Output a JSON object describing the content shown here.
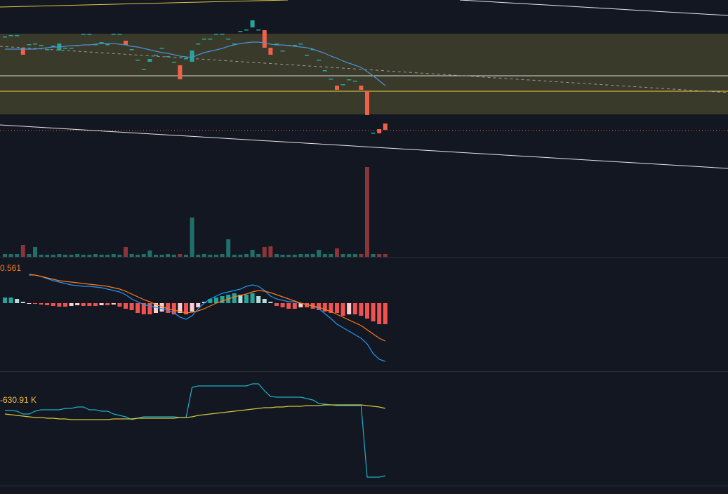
{
  "chart_data": [
    {
      "type": "candlestick",
      "ylim": [
        0,
        200
      ],
      "up_color": "#26a69a",
      "down_color": "#f0614a",
      "ma_color": "#4a90d9",
      "open": [
        148,
        150,
        150,
        132,
        137,
        138,
        136,
        130,
        135,
        128,
        132,
        132,
        136,
        152,
        152,
        137,
        140,
        137,
        152,
        152,
        142,
        130,
        115,
        102,
        112,
        122,
        132,
        120,
        112,
        107,
        117,
        112,
        138,
        145,
        145,
        152,
        152,
        145,
        138,
        156,
        158,
        161,
        158,
        157,
        132,
        138,
        128,
        136,
        136,
        138,
        122,
        130,
        115,
        100,
        88,
        78,
        80,
        87,
        85,
        78,
        70,
        11,
        16,
        24
      ],
      "close": [
        148,
        150,
        150,
        122,
        137,
        138,
        136,
        130,
        135,
        138,
        132,
        132,
        136,
        152,
        152,
        137,
        140,
        137,
        152,
        152,
        136,
        130,
        115,
        102,
        116,
        122,
        132,
        120,
        112,
        87,
        117,
        128,
        138,
        145,
        145,
        152,
        152,
        145,
        138,
        156,
        158,
        171,
        158,
        132,
        122,
        138,
        128,
        136,
        136,
        138,
        122,
        130,
        115,
        100,
        88,
        72,
        80,
        87,
        85,
        72,
        36,
        11,
        10,
        15
      ],
      "ma": [
        130,
        130,
        130,
        130,
        130,
        130,
        131,
        132,
        133,
        133,
        134,
        135,
        135,
        136,
        136,
        137,
        138,
        138,
        138,
        137,
        136,
        134,
        133,
        131,
        129,
        127,
        125,
        124,
        122,
        120,
        119,
        118,
        122,
        125,
        127,
        129,
        131,
        134,
        136,
        138,
        139,
        140,
        140,
        139,
        137,
        136,
        136,
        135,
        134,
        133,
        132,
        130,
        127,
        124,
        120,
        117,
        113,
        110,
        107,
        104,
        98,
        92,
        85,
        78
      ]
    },
    {
      "type": "bar",
      "ylim": [
        0,
        130
      ],
      "up_color": "#1f6f6a",
      "down_color": "#8a3538",
      "values": [
        4,
        4,
        4,
        17,
        4,
        14,
        3,
        3,
        3,
        4,
        3,
        3,
        4,
        3,
        3,
        4,
        3,
        3,
        4,
        3,
        14,
        4,
        3,
        4,
        9,
        3,
        3,
        4,
        3,
        4,
        3,
        56,
        3,
        4,
        3,
        3,
        4,
        25,
        3,
        3,
        4,
        10,
        4,
        14,
        15,
        4,
        3,
        3,
        3,
        4,
        4,
        4,
        10,
        4,
        4,
        12,
        4,
        4,
        4,
        4,
        128,
        4,
        4,
        4
      ]
    },
    {
      "type": "macd",
      "ylim": [
        -96,
        65
      ],
      "dif_color": "#2196f3",
      "dea_color": "#ff7a1a",
      "label_color": "#ff7a1a",
      "label": "0.561",
      "hist": [
        8,
        8,
        6,
        2,
        -1,
        -1,
        -2,
        -3,
        -4,
        -5,
        -5,
        -4,
        -3,
        -4,
        -4,
        -4,
        -3,
        -3,
        -2,
        -5,
        -8,
        -10,
        -14,
        -16,
        -16,
        -14,
        -12,
        -14,
        -16,
        -14,
        -16,
        -12,
        -6,
        2,
        6,
        8,
        10,
        12,
        14,
        12,
        12,
        14,
        10,
        6,
        2,
        -4,
        -6,
        -8,
        -8,
        -6,
        -6,
        -8,
        -10,
        -12,
        -14,
        -14,
        -18,
        -16,
        -16,
        -18,
        -22,
        -26,
        -30,
        -30
      ],
      "dif": [
        null,
        null,
        null,
        null,
        40,
        40,
        38,
        35,
        32,
        30,
        28,
        26,
        25,
        24,
        24,
        23,
        22,
        20,
        18,
        16,
        12,
        6,
        2,
        -2,
        -4,
        -6,
        -8,
        -10,
        -14,
        -20,
        -23,
        -18,
        -8,
        0,
        6,
        10,
        14,
        16,
        18,
        20,
        24,
        26,
        24,
        18,
        10,
        6,
        4,
        2,
        2,
        0,
        -2,
        -4,
        -8,
        -15,
        -22,
        -30,
        -35,
        -40,
        -45,
        -50,
        -58,
        -72,
        -80,
        -83
      ],
      "dea": [
        null,
        null,
        null,
        null,
        41,
        40,
        38,
        36,
        34,
        32,
        31,
        30,
        29,
        28,
        27,
        26,
        25,
        24,
        22,
        20,
        17,
        13,
        9,
        5,
        2,
        -2,
        -5,
        -8,
        -10,
        -12,
        -14,
        -13,
        -11,
        -8,
        -4,
        0,
        3,
        6,
        9,
        11,
        13,
        16,
        18,
        17,
        15,
        12,
        9,
        6,
        3,
        0,
        -2,
        -4,
        -6,
        -9,
        -12,
        -16,
        -20,
        -24,
        -28,
        -32,
        -38,
        -44,
        -50,
        -54
      ]
    },
    {
      "type": "line",
      "ylim": [
        0,
        162
      ],
      "label": "-630.91 K",
      "label_color": "#f0c43a",
      "series": [
        {
          "color": "#1fb0c8",
          "values": [
            107,
            107,
            106,
            102,
            102,
            106,
            108,
            108,
            108,
            108,
            110,
            110,
            112,
            112,
            108,
            108,
            106,
            106,
            102,
            100,
            98,
            94,
            96,
            98,
            98,
            98,
            98,
            98,
            98,
            97,
            97,
            140,
            142,
            142,
            142,
            142,
            142,
            142,
            142,
            142,
            142,
            145,
            145,
            135,
            127,
            126,
            126,
            126,
            126,
            126,
            124,
            122,
            117,
            116,
            115,
            114,
            114,
            114,
            114,
            114,
            12,
            12,
            12,
            14
          ]
        },
        {
          "color": "#d6c53a",
          "values": [
            102,
            101,
            100,
            99,
            98,
            97,
            97,
            96,
            96,
            95,
            95,
            94,
            94,
            94,
            94,
            94,
            94,
            94,
            95,
            95,
            95,
            95,
            96,
            96,
            96,
            96,
            96,
            96,
            96,
            97,
            97,
            98,
            100,
            101,
            102,
            103,
            104,
            105,
            106,
            107,
            108,
            109,
            110,
            111,
            111,
            112,
            112,
            113,
            113,
            113,
            114,
            114,
            114,
            115,
            115,
            115,
            115,
            115,
            115,
            115,
            114,
            113,
            112,
            110
          ]
        }
      ]
    }
  ]
}
